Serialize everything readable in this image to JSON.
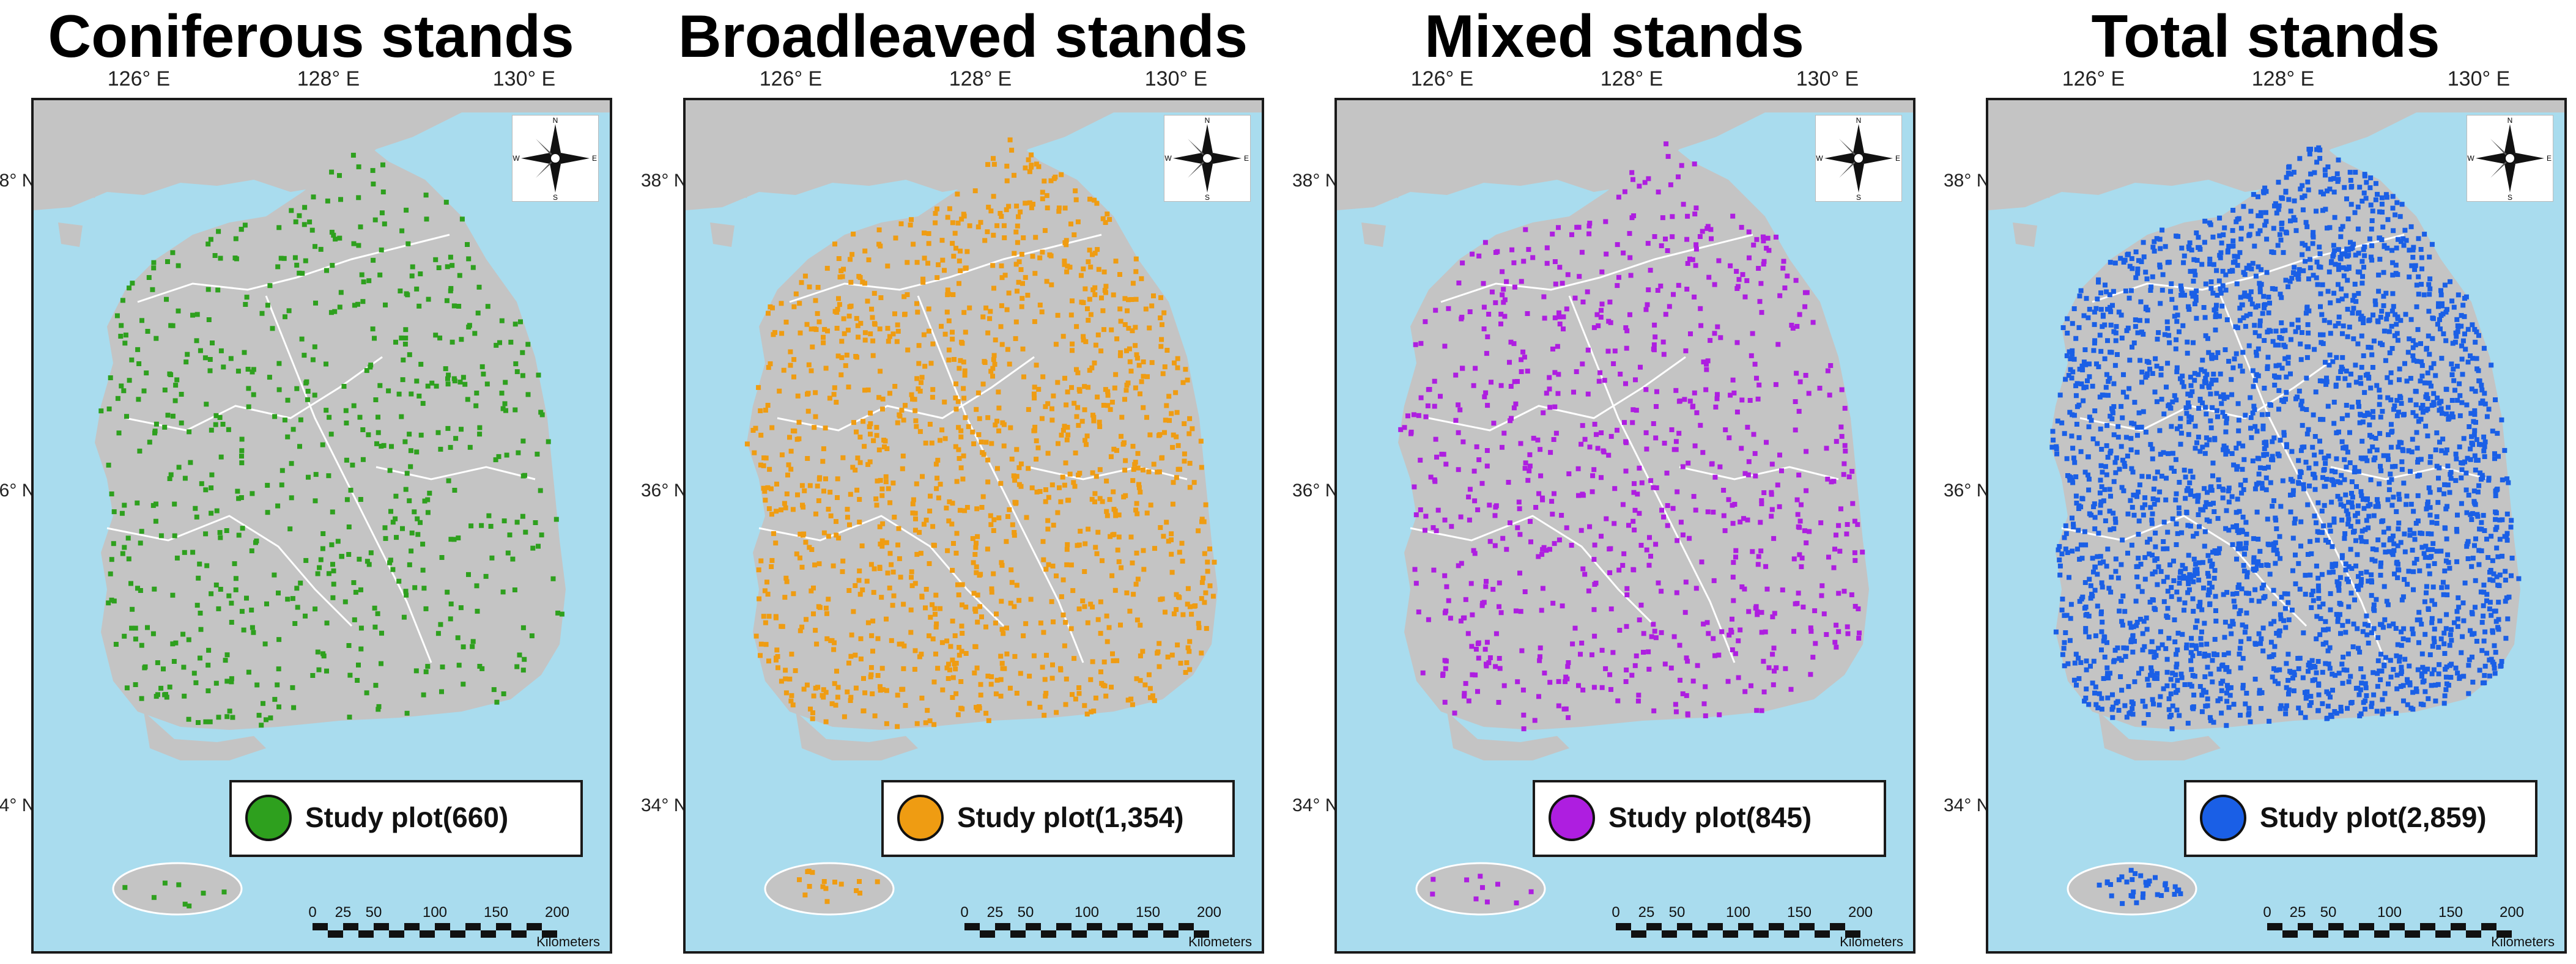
{
  "map_data": {
    "panels": [
      {
        "id": "coniferous",
        "title": "Coniferous stands",
        "legend_label": "Study plot(660)",
        "point_color": "#2ea01e",
        "point_count": 660
      },
      {
        "id": "broadleaved",
        "title": "Broadleaved stands",
        "legend_label": "Study plot(1,354)",
        "point_color": "#ef9c12",
        "point_count": 1354
      },
      {
        "id": "mixed",
        "title": "Mixed stands",
        "legend_label": "Study plot(845)",
        "point_color": "#ae1ee0",
        "point_count": 845
      },
      {
        "id": "total",
        "title": "Total stands",
        "legend_label": "Study plot(2,859)",
        "point_color": "#1a5fe6",
        "point_count": 2859
      }
    ],
    "longitude_labels": [
      "126° E",
      "128° E",
      "130° E"
    ],
    "latitude_labels": [
      "38° N",
      "36° N",
      "34° N"
    ],
    "scale_bar": {
      "ticks": [
        "0",
        "25",
        "50",
        "100",
        "150",
        "200"
      ],
      "unit": "Kilometers"
    },
    "compass_letters": [
      "N",
      "E",
      "S",
      "W"
    ],
    "colors": {
      "sea": "#a9dcee",
      "land": "#c4c4c4",
      "province_border": "#ffffff",
      "frame": "#1a1a1a"
    }
  }
}
